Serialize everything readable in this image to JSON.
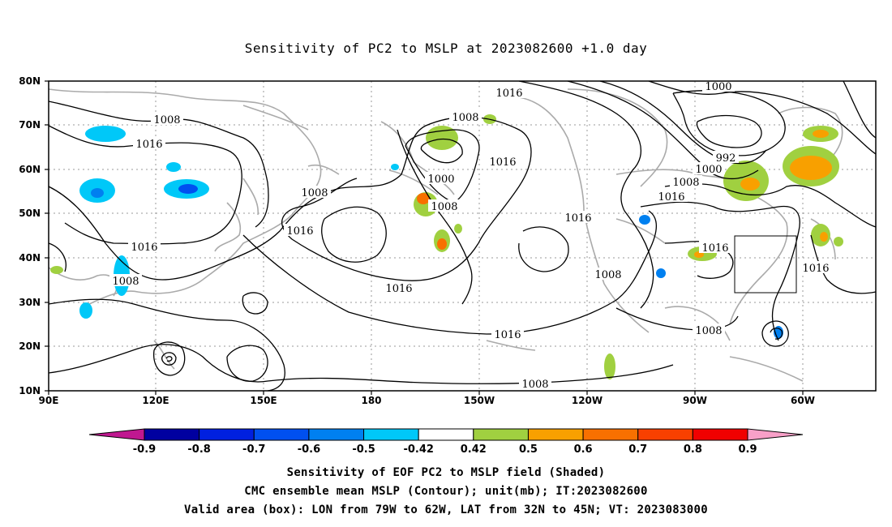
{
  "title": "Sensitivity of PC2 to MSLP at 2023082600 +1.0 day",
  "lat_labels": [
    "80N",
    "70N",
    "60N",
    "50N",
    "40N",
    "30N",
    "20N",
    "10N"
  ],
  "lon_labels": [
    "90E",
    "120E",
    "150E",
    "180",
    "150W",
    "120W",
    "90W",
    "60W"
  ],
  "contour_labels": [
    {
      "text": "1016"
    },
    {
      "text": "1008"
    },
    {
      "text": "1000"
    },
    {
      "text": "1008"
    },
    {
      "text": "1016"
    },
    {
      "text": "1008"
    },
    {
      "text": "1016"
    },
    {
      "text": "1008"
    },
    {
      "text": "1016"
    },
    {
      "text": "1000"
    },
    {
      "text": "1008"
    },
    {
      "text": "1016"
    },
    {
      "text": "1016"
    },
    {
      "text": "992"
    },
    {
      "text": "1000"
    },
    {
      "text": "1008"
    },
    {
      "text": "1016"
    },
    {
      "text": "1016"
    },
    {
      "text": "1008"
    },
    {
      "text": "1016"
    },
    {
      "text": "1016"
    },
    {
      "text": "1008"
    },
    {
      "text": "1016"
    },
    {
      "text": "1008"
    },
    {
      "text": "1016"
    },
    {
      "text": "1008"
    }
  ],
  "colorbar": {
    "labels": [
      "-0.9",
      "-0.8",
      "-0.7",
      "-0.6",
      "-0.5",
      "-0.42",
      "0.42",
      "0.5",
      "0.6",
      "0.7",
      "0.8",
      "0.9"
    ],
    "colors": [
      "#0000a0",
      "#0020e0",
      "#0050f0",
      "#0080f0",
      "#00c8f8",
      "#ffffff",
      "#a0d040",
      "#f8a000",
      "#f87000",
      "#f84000",
      "#f00000"
    ],
    "low_color": "#c01890",
    "high_color": "#f8a0c8"
  },
  "valid_box": {
    "lon_min": -79,
    "lon_max": -62,
    "lat_min": 32,
    "lat_max": 45
  },
  "captions": {
    "line1": "Sensitivity of EOF PC2 to MSLP field (Shaded)",
    "line2": "CMC ensemble mean MSLP (Contour); unit(mb); IT:2023082600",
    "line3": "Valid area (box): LON from 79W to 62W, LAT from 32N to 45N; VT: 2023083000"
  }
}
